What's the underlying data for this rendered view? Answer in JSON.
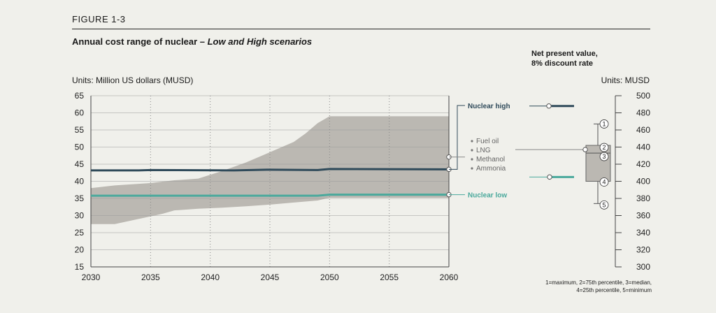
{
  "figure_label": "FIGURE 1-3",
  "title_main": "Annual cost range of nuclear – ",
  "title_sub": "Low and High scenarios",
  "units_left_prefix": "Units: ",
  "units_left_value": "Million US dollars (MUSD)",
  "npv_title_line1": "Net present value,",
  "npv_title_line2": "8% discount rate",
  "units_right_prefix": "Units: ",
  "units_right_value": "MUSD",
  "footnote_line1": "1=maximum, 2=75th percentile, 3=median,",
  "footnote_line2": "4=25th percentile, 5=minimum",
  "colors": {
    "band": "#bbb8b2",
    "high": "#2f4a5a",
    "low": "#4aa99c",
    "box": "#bbb8b2",
    "grid": "#999999"
  },
  "chart_data": [
    {
      "type": "area",
      "title": "Annual cost range of nuclear – Low and High scenarios",
      "xlabel": "",
      "ylabel": "Million US dollars (MUSD)",
      "xlim": [
        2030,
        2060
      ],
      "ylim": [
        15,
        65
      ],
      "x_ticks": [
        2030,
        2035,
        2040,
        2045,
        2050,
        2055,
        2060
      ],
      "y_ticks": [
        15,
        20,
        25,
        30,
        35,
        40,
        45,
        50,
        55,
        60,
        65
      ],
      "grid": true,
      "band": {
        "upper": [
          [
            2030,
            38
          ],
          [
            2032,
            38.8
          ],
          [
            2035,
            39.5
          ],
          [
            2037,
            40.3
          ],
          [
            2039,
            40.8
          ],
          [
            2041,
            43
          ],
          [
            2043,
            45.5
          ],
          [
            2045,
            48.5
          ],
          [
            2047,
            51.5
          ],
          [
            2048,
            54
          ],
          [
            2049,
            57
          ],
          [
            2050,
            59
          ],
          [
            2060,
            59
          ]
        ],
        "lower": [
          [
            2030,
            27.5
          ],
          [
            2032,
            27.5
          ],
          [
            2034,
            29
          ],
          [
            2036,
            30.5
          ],
          [
            2037,
            31.5
          ],
          [
            2039,
            32
          ],
          [
            2041,
            32.3
          ],
          [
            2043,
            32.7
          ],
          [
            2045,
            33.2
          ],
          [
            2047,
            33.8
          ],
          [
            2049,
            34.4
          ],
          [
            2050,
            35.2
          ],
          [
            2060,
            35.2
          ]
        ]
      },
      "series": [
        {
          "name": "Nuclear high",
          "values": [
            [
              2030,
              43.2
            ],
            [
              2034,
              43.2
            ],
            [
              2035,
              43.3
            ],
            [
              2042,
              43.2
            ],
            [
              2045,
              43.4
            ],
            [
              2049,
              43.3
            ],
            [
              2050,
              43.6
            ],
            [
              2060,
              43.5
            ]
          ]
        },
        {
          "name": "Nuclear low",
          "values": [
            [
              2030,
              35.8
            ],
            [
              2040,
              35.8
            ],
            [
              2049,
              35.8
            ],
            [
              2050,
              36.1
            ],
            [
              2060,
              36.1
            ]
          ]
        }
      ],
      "fuel_labels": [
        "Fuel oil",
        "LNG",
        "Methanol",
        "Ammonia"
      ]
    },
    {
      "type": "box",
      "title": "Net present value, 8% discount rate",
      "ylabel": "MUSD",
      "ylim": [
        300,
        500
      ],
      "y_ticks": [
        300,
        320,
        340,
        360,
        380,
        400,
        420,
        440,
        460,
        480,
        500
      ],
      "box": {
        "max": 467,
        "q3": 442,
        "median": 433,
        "q1": 400,
        "min": 374
      },
      "box_markers": [
        "1",
        "2",
        "3",
        "4",
        "5"
      ],
      "points": [
        {
          "name": "Nuclear high",
          "value": 488
        },
        {
          "name": "Nuclear low",
          "value": 405
        }
      ]
    }
  ]
}
